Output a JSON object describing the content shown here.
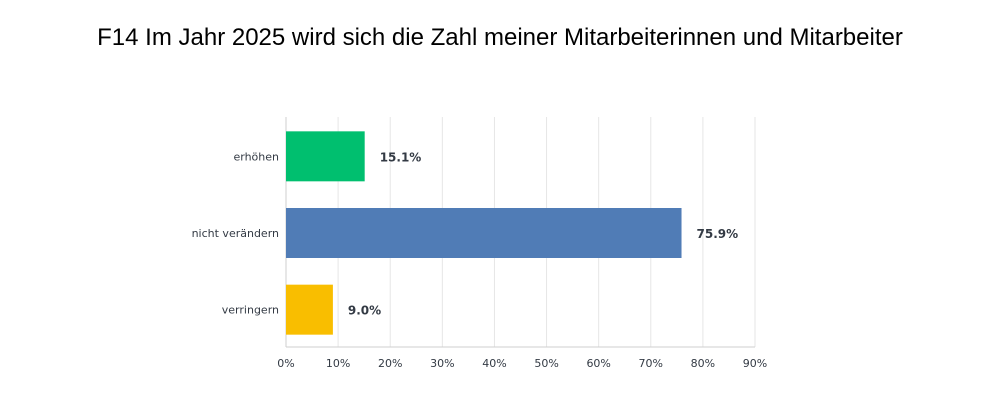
{
  "chart_data": {
    "type": "bar",
    "orientation": "horizontal",
    "title": "F14 Im Jahr 2025 wird sich die Zahl meiner Mitarbeiterinnen und Mitarbeiter",
    "categories": [
      "erhöhen",
      "nicht verändern",
      "verringern"
    ],
    "values": [
      15.1,
      75.9,
      9.0
    ],
    "value_labels": [
      "15.1%",
      "75.9%",
      "9.0%"
    ],
    "colors": [
      "#00BF6F",
      "#507CB6",
      "#F9BE00"
    ],
    "xlim": [
      0,
      90
    ],
    "xticks": [
      0,
      10,
      20,
      30,
      40,
      50,
      60,
      70,
      80,
      90
    ],
    "xtick_labels": [
      "0%",
      "10%",
      "20%",
      "30%",
      "40%",
      "50%",
      "60%",
      "70%",
      "80%",
      "90%"
    ],
    "xlabel": "",
    "ylabel": "",
    "grid": true,
    "legend": "none"
  }
}
